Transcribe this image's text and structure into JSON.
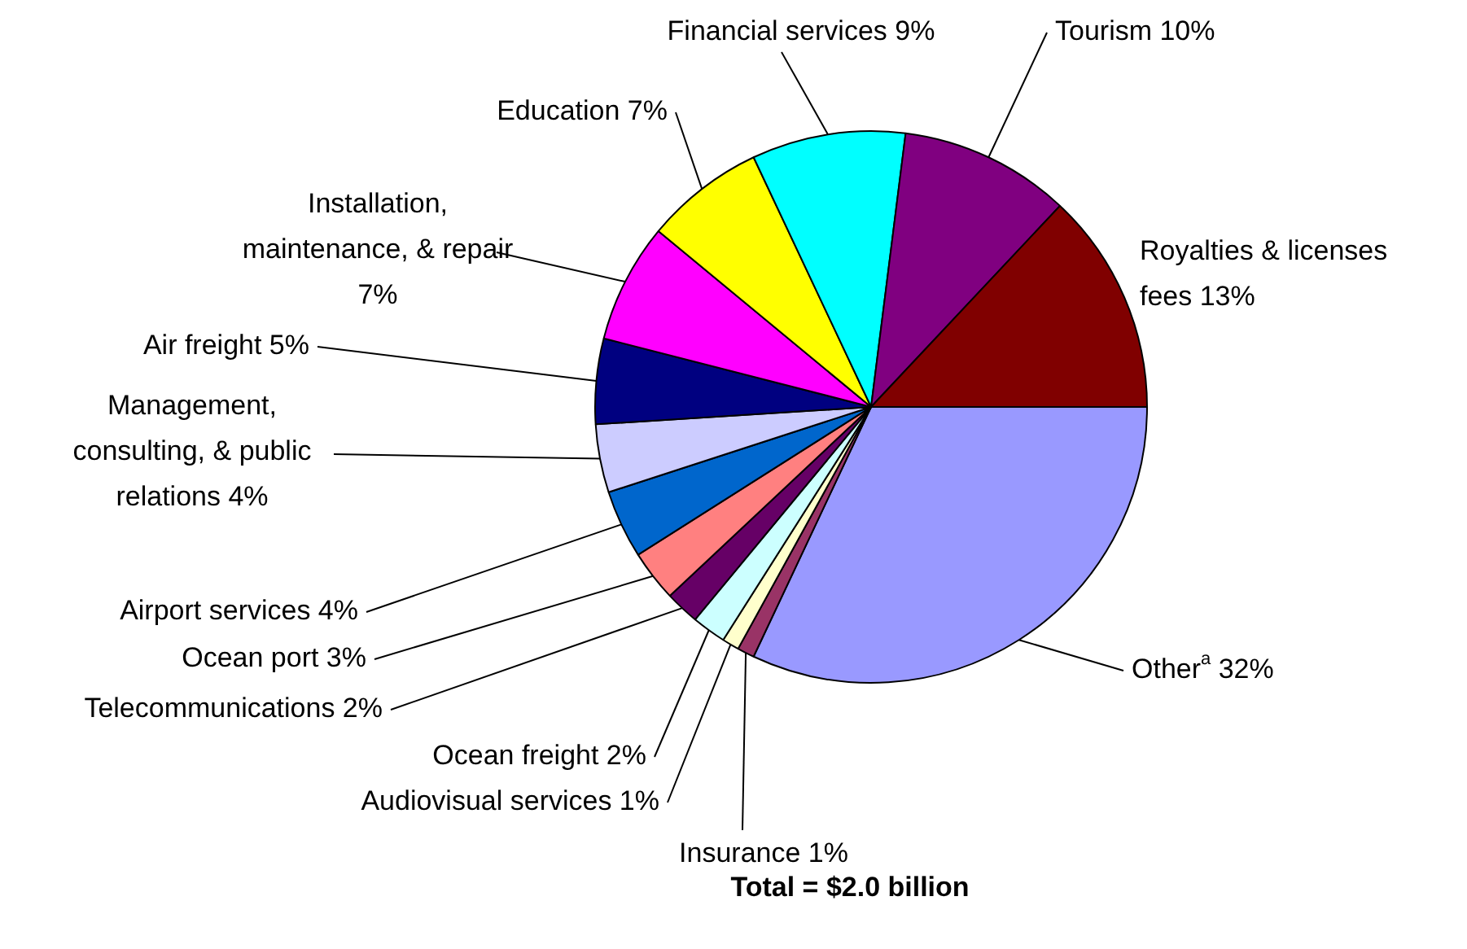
{
  "chart_data": {
    "type": "pie",
    "categories": [
      "Other$^{a}$",
      "Insurance",
      "Audiovisual services",
      "Ocean freight",
      "Telecommunications",
      "Ocean port",
      "Airport services",
      "Management, consulting, & public relations",
      "Air freight",
      "Installation, maintenance, & repair",
      "Education",
      "Financial services",
      "Tourism",
      "Royalties & licenses fees"
    ],
    "values": [
      32,
      1,
      1,
      2,
      2,
      3,
      4,
      4,
      5,
      7,
      7,
      9,
      10,
      13
    ],
    "colors": [
      "#9999ff",
      "#993366",
      "#ffffcc",
      "#ccffff",
      "#660066",
      "#ff8080",
      "#0066cc",
      "#ccccff",
      "#000080",
      "#ff00ff",
      "#ffff00",
      "#00ffff",
      "#800080",
      "#800000"
    ],
    "value_labels": [
      "32%",
      "1%",
      "1%",
      "2%",
      "2%",
      "3%",
      "4%",
      "4%",
      "5%",
      "7%",
      "7%",
      "9%",
      "10%",
      "13%"
    ],
    "legend": false,
    "annotations": [
      "Total = $2.0 billion"
    ]
  }
}
